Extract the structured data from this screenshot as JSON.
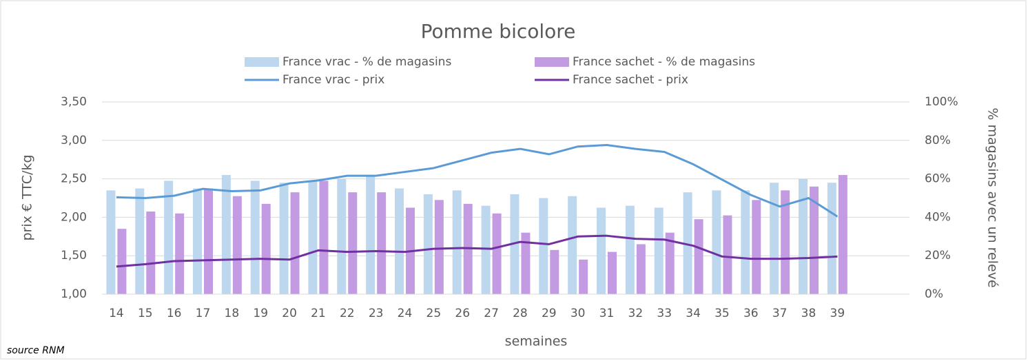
{
  "chart_data": {
    "type": "bar-line",
    "title": "Pomme bicolore",
    "x_label": "semaines",
    "y_label": "prix € TTC/kg",
    "y2_label": "% magasins avec un relevé",
    "source": "source RNM",
    "categories": [
      "14",
      "15",
      "16",
      "17",
      "18",
      "19",
      "20",
      "21",
      "22",
      "23",
      "24",
      "25",
      "26",
      "27",
      "28",
      "29",
      "30",
      "31",
      "32",
      "33",
      "34",
      "35",
      "36",
      "37",
      "38",
      "39",
      null,
      null
    ],
    "series": [
      {
        "name": "France vrac - % de magasins",
        "type": "bar",
        "axis": "y2",
        "color": "#bdd7ee",
        "values": [
          54,
          55,
          59,
          55,
          62,
          59,
          58,
          59,
          60,
          62,
          55,
          52,
          54,
          46,
          52,
          50,
          51,
          45,
          46,
          45,
          53,
          54,
          54,
          58,
          60,
          58,
          null,
          null
        ]
      },
      {
        "name": "France sachet - % de magasins",
        "type": "bar",
        "axis": "y2",
        "color": "#c39be3",
        "values": [
          34,
          43,
          42,
          55,
          51,
          47,
          53,
          59,
          53,
          53,
          45,
          49,
          47,
          42,
          32,
          23,
          18,
          22,
          26,
          32,
          39,
          41,
          49,
          54,
          56,
          62,
          null,
          null
        ]
      },
      {
        "name": "France vrac - prix",
        "type": "line",
        "color": "#5b9bd5",
        "values": [
          2.26,
          2.25,
          2.28,
          2.37,
          2.34,
          2.35,
          2.44,
          2.48,
          2.54,
          2.54,
          2.59,
          2.64,
          2.74,
          2.84,
          2.89,
          2.82,
          2.92,
          2.94,
          2.89,
          2.85,
          2.69,
          2.49,
          2.29,
          2.14,
          2.25,
          2.01,
          null,
          null
        ]
      },
      {
        "name": "France sachet - prix",
        "type": "line",
        "color": "#7030a0",
        "values": [
          1.36,
          1.39,
          1.43,
          1.44,
          1.45,
          1.46,
          1.45,
          1.57,
          1.55,
          1.56,
          1.55,
          1.59,
          1.6,
          1.59,
          1.68,
          1.65,
          1.75,
          1.76,
          1.72,
          1.71,
          1.63,
          1.49,
          1.46,
          1.46,
          1.47,
          1.49,
          null,
          null
        ]
      }
    ],
    "ylim": [
      1,
      3.5
    ],
    "yticks": [
      {
        "value": 1,
        "label": "1,00"
      },
      {
        "value": 1.5,
        "label": "1,50"
      },
      {
        "value": 2,
        "label": "2,00"
      },
      {
        "value": 2.5,
        "label": "2,50"
      },
      {
        "value": 3,
        "label": "3,00"
      },
      {
        "value": 3.5,
        "label": "3,50"
      }
    ],
    "y2lim": [
      0,
      100
    ],
    "y2ticks": [
      {
        "value": 0,
        "label": "0%"
      },
      {
        "value": 20,
        "label": "20%"
      },
      {
        "value": 40,
        "label": "40%"
      },
      {
        "value": 60,
        "label": "60%"
      },
      {
        "value": 80,
        "label": "80%"
      },
      {
        "value": 100,
        "label": "100%"
      }
    ],
    "grid": true
  }
}
